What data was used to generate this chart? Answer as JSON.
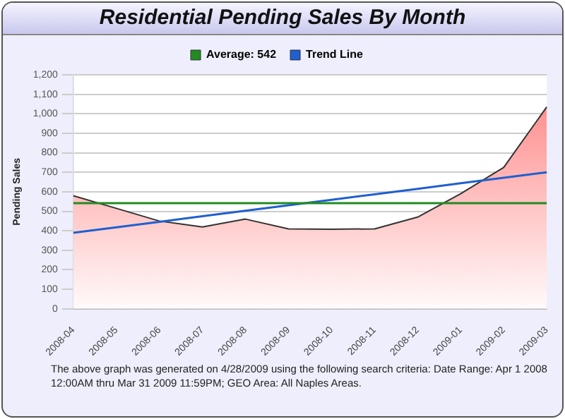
{
  "chart_data": {
    "type": "area",
    "title": "Residential Pending Sales By Month",
    "ylabel": "Pending Sales",
    "categories": [
      "2008-04",
      "2008-05",
      "2008-06",
      "2008-07",
      "2008-08",
      "2008-09",
      "2008-10",
      "2008-11",
      "2008-12",
      "2009-01",
      "2009-02",
      "2009-03"
    ],
    "series": [
      {
        "color": "#ff8080",
        "values": [
          580,
          515,
          450,
          420,
          460,
          410,
          408,
          410,
          470,
          590,
          725,
          1035
        ]
      },
      {
        "type": "line",
        "name": "Average: 542",
        "color": "#228b22",
        "values": [
          542,
          542,
          542,
          542,
          542,
          542,
          542,
          542,
          542,
          542,
          542,
          542
        ]
      },
      {
        "type": "line",
        "name": "Trend Line",
        "color": "#1f5fd0",
        "values": [
          390,
          418,
          446,
          475,
          503,
          531,
          559,
          587,
          615,
          644,
          672,
          700
        ]
      }
    ],
    "ylim": [
      0,
      1200
    ],
    "yticks": [
      0,
      100,
      200,
      300,
      400,
      500,
      600,
      700,
      800,
      900,
      {
        "value": 1000,
        "label": "1,000"
      },
      {
        "value": 1100,
        "label": "1,100"
      },
      {
        "value": 1200,
        "label": "1,200"
      }
    ],
    "grid": "y",
    "legend": "top",
    "marker": "none",
    "annotations": [
      "The above graph was generated on 4/28/2009 using the following search criteria: Date Range: Apr  1 2008 12:00AM thru Mar 31 2009 11:59PM; GEO Area: All Naples Areas."
    ]
  }
}
